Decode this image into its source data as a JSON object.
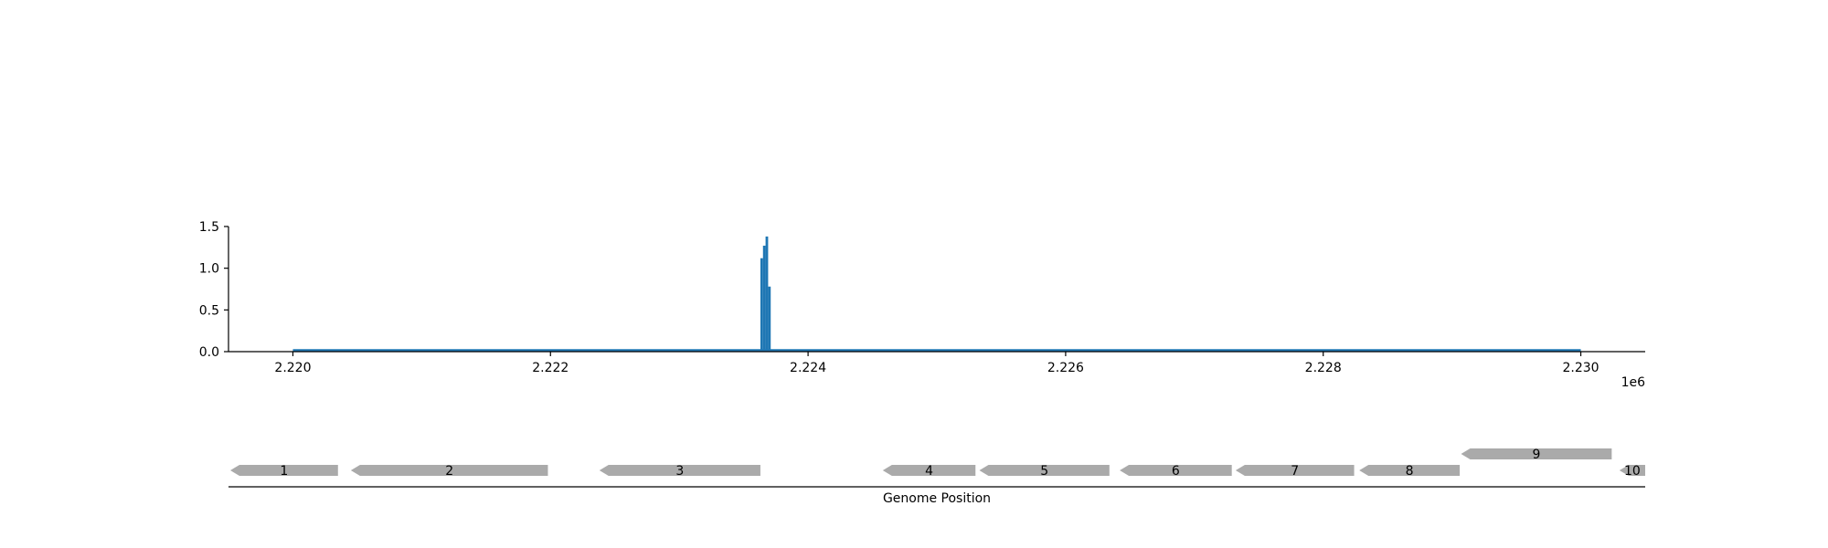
{
  "chart_data": [
    {
      "type": "bar",
      "title": "",
      "xlabel": "",
      "ylabel": "",
      "x_offset_label": "1e6",
      "xlim": [
        2219500,
        2230500
      ],
      "ylim": [
        0,
        1.5
      ],
      "x_ticks": [
        2220000,
        2222000,
        2224000,
        2226000,
        2228000,
        2230000
      ],
      "x_tick_labels": [
        "2.220",
        "2.222",
        "2.224",
        "2.226",
        "2.228",
        "2.230"
      ],
      "y_ticks": [
        0,
        0.5,
        1.0,
        1.5
      ],
      "y_tick_labels": [
        "0.0",
        "0.5",
        "1.0",
        "1.5"
      ],
      "baseline_range": [
        2220000,
        2230000
      ],
      "bar_color": "#1f77b4",
      "bars": [
        {
          "x": 2223640,
          "value": 1.12
        },
        {
          "x": 2223660,
          "value": 1.27
        },
        {
          "x": 2223680,
          "value": 1.38
        },
        {
          "x": 2223700,
          "value": 0.78
        }
      ]
    },
    {
      "type": "gene-track",
      "xlabel": "Genome Position",
      "gene_color": "#aaaaaa",
      "genes": [
        {
          "label": "1",
          "start": 2219500,
          "end": 2220350,
          "strand": "-",
          "row": 0
        },
        {
          "label": "2",
          "start": 2220450,
          "end": 2221980,
          "strand": "-",
          "row": 0
        },
        {
          "label": "3",
          "start": 2222380,
          "end": 2223630,
          "strand": "-",
          "row": 0
        },
        {
          "label": "4",
          "start": 2224580,
          "end": 2225300,
          "strand": "-",
          "row": 0
        },
        {
          "label": "5",
          "start": 2225330,
          "end": 2226340,
          "strand": "-",
          "row": 0
        },
        {
          "label": "6",
          "start": 2226420,
          "end": 2227290,
          "strand": "-",
          "row": 0
        },
        {
          "label": "7",
          "start": 2227320,
          "end": 2228240,
          "strand": "-",
          "row": 0
        },
        {
          "label": "8",
          "start": 2228280,
          "end": 2229060,
          "strand": "-",
          "row": 0
        },
        {
          "label": "9",
          "start": 2229070,
          "end": 2230240,
          "strand": "-",
          "row": 1
        },
        {
          "label": "10",
          "start": 2230300,
          "end": 2230500,
          "strand": "-",
          "row": 0
        }
      ]
    }
  ]
}
